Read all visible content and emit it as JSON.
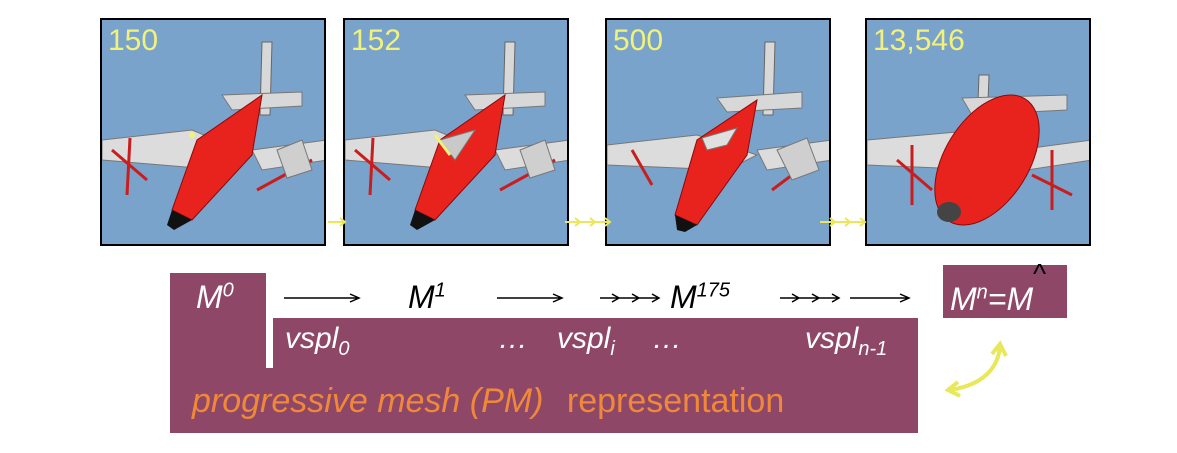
{
  "panels": [
    {
      "count": "150"
    },
    {
      "count": "152"
    },
    {
      "count": "500"
    },
    {
      "count": "13,546"
    }
  ],
  "sequence": {
    "m0": {
      "base": "M",
      "sup": "0"
    },
    "m1": {
      "base": "M",
      "sup": "1"
    },
    "m175": {
      "base": "M",
      "sup": "175"
    },
    "mn": {
      "base": "M",
      "sup": "n",
      "eq": "=M",
      "hat": "^"
    },
    "ellipsis": "…",
    "vspl0": {
      "base": "vspl",
      "sub": "0"
    },
    "vspli": {
      "base": "vspl",
      "sub": "i"
    },
    "vspln": {
      "base": "vspl",
      "sub": "n-1"
    }
  },
  "caption": {
    "italic": "progressive mesh (PM)",
    "plain": "representation"
  },
  "colors": {
    "panel_bg": "#7aa3cc",
    "box": "#8f4767",
    "count": "#f2f27a",
    "caption_orange": "#f0883a",
    "arrow_yellow": "#e8e85a",
    "plane_red": "#e8231e"
  }
}
